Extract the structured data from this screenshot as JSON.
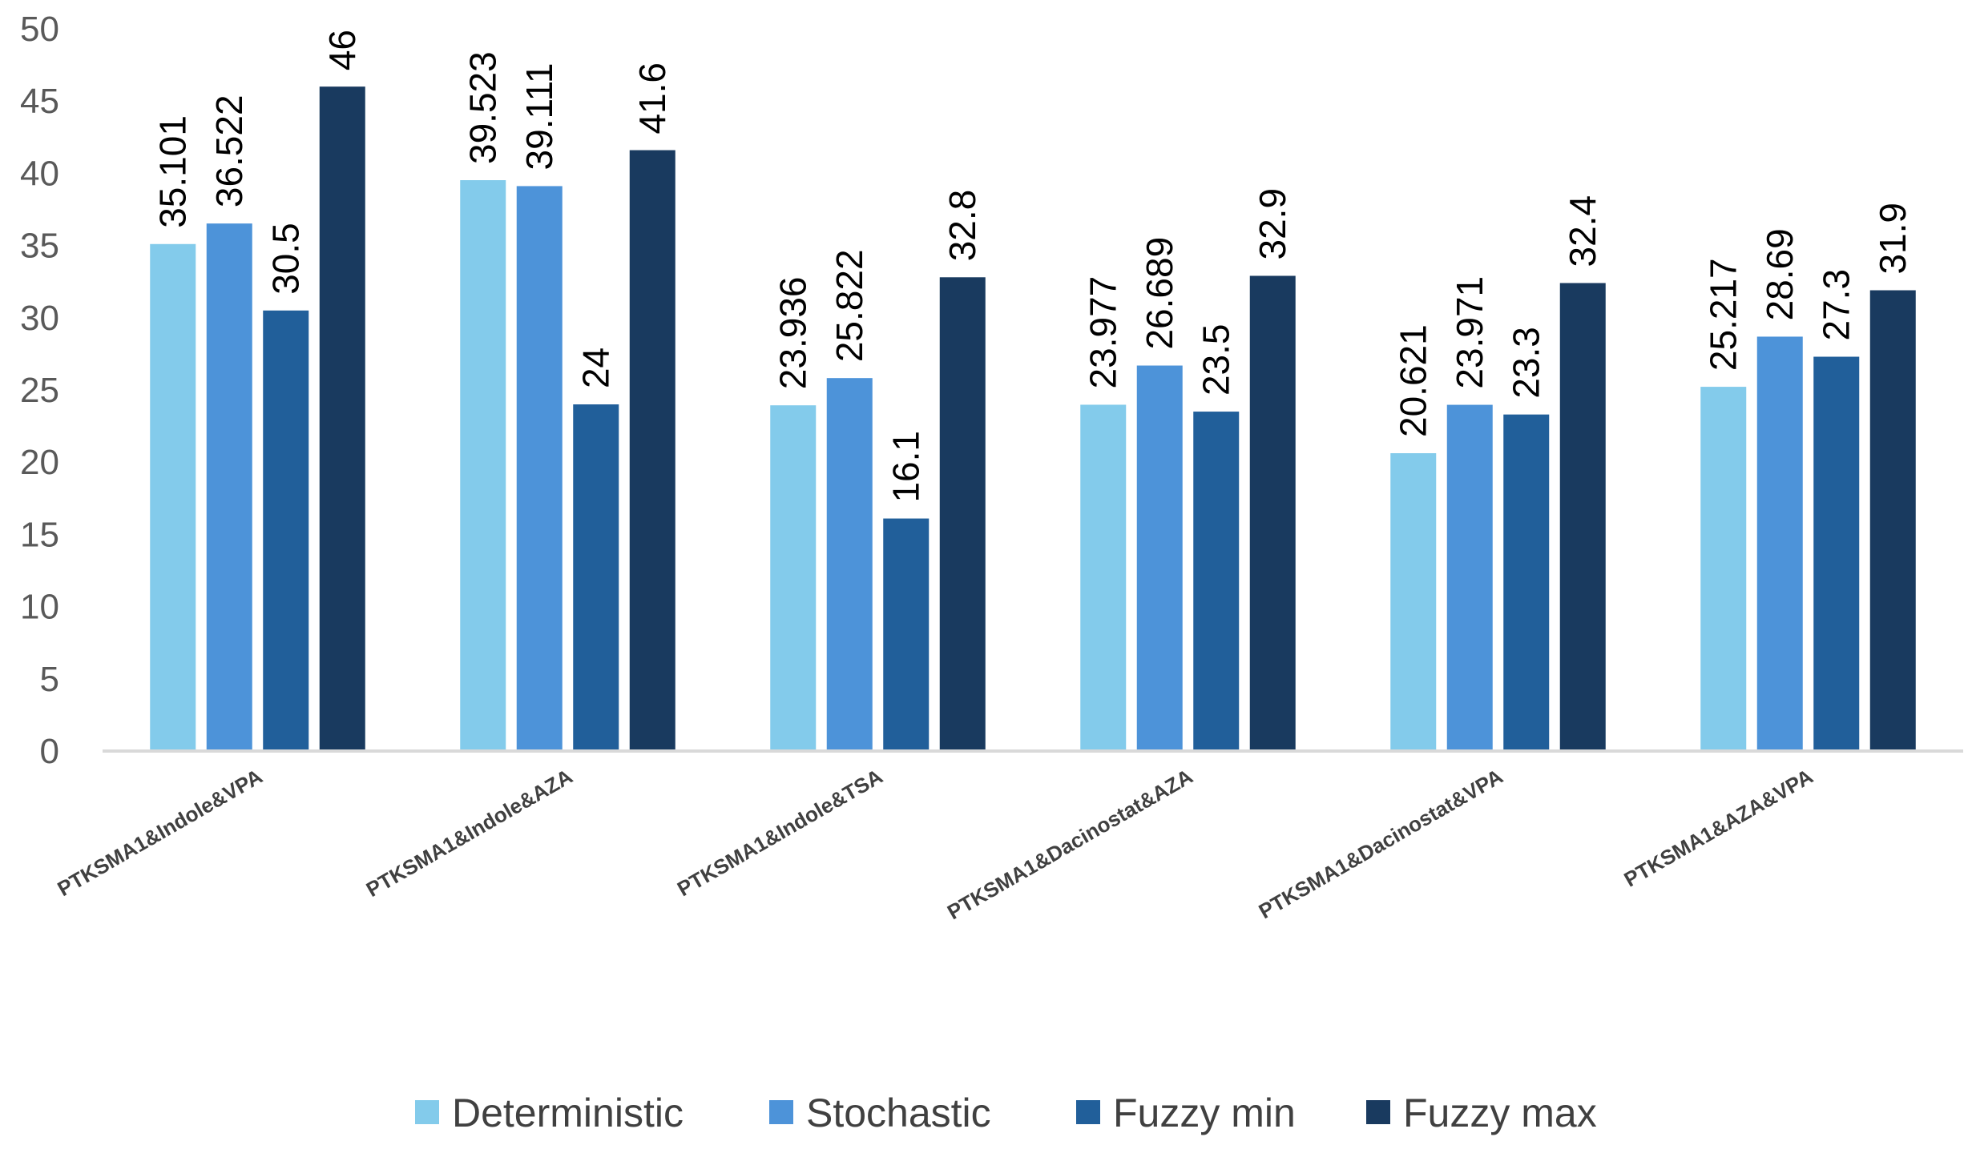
{
  "chart_data": {
    "type": "bar",
    "title": "",
    "xlabel": "",
    "ylabel": "",
    "ylim": [
      0,
      50
    ],
    "yticks": [
      0,
      5,
      10,
      15,
      20,
      25,
      30,
      35,
      40,
      45,
      50
    ],
    "grid": false,
    "legend_position": "bottom",
    "categories": [
      "PTKSMA1&Indole&VPA",
      "PTKSMA1&Indole&AZA",
      "PTKSMA1&Indole&TSA",
      "PTKSMA1&Dacinostat&AZA",
      "PTKSMA1&Dacinostat&VPA",
      "PTKSMA1&AZA&VPA"
    ],
    "series": [
      {
        "name": "Deterministic",
        "color": "#83CBEB",
        "values": [
          35.101,
          39.523,
          23.936,
          23.977,
          20.621,
          25.217
        ],
        "labels": [
          "35.101",
          "39.523",
          "23.936",
          "23.977",
          "20.621",
          "25.217"
        ]
      },
      {
        "name": "Stochastic",
        "color": "#4D93D9",
        "values": [
          36.522,
          39.111,
          25.822,
          26.689,
          23.971,
          28.69
        ],
        "labels": [
          "36.522",
          "39.111",
          "25.822",
          "26.689",
          "23.971",
          "28.69"
        ]
      },
      {
        "name": "Fuzzy min",
        "color": "#215F9A",
        "values": [
          30.5,
          24,
          16.1,
          23.5,
          23.3,
          27.3
        ],
        "labels": [
          "30.5",
          "24",
          "16.1",
          "23.5",
          "23.3",
          "27.3"
        ]
      },
      {
        "name": "Fuzzy max",
        "color": "#193A5F",
        "values": [
          46,
          41.6,
          32.8,
          32.9,
          32.4,
          31.9
        ],
        "labels": [
          "46",
          "41.6",
          "32.8",
          "32.9",
          "32.4",
          "31.9"
        ]
      }
    ]
  }
}
